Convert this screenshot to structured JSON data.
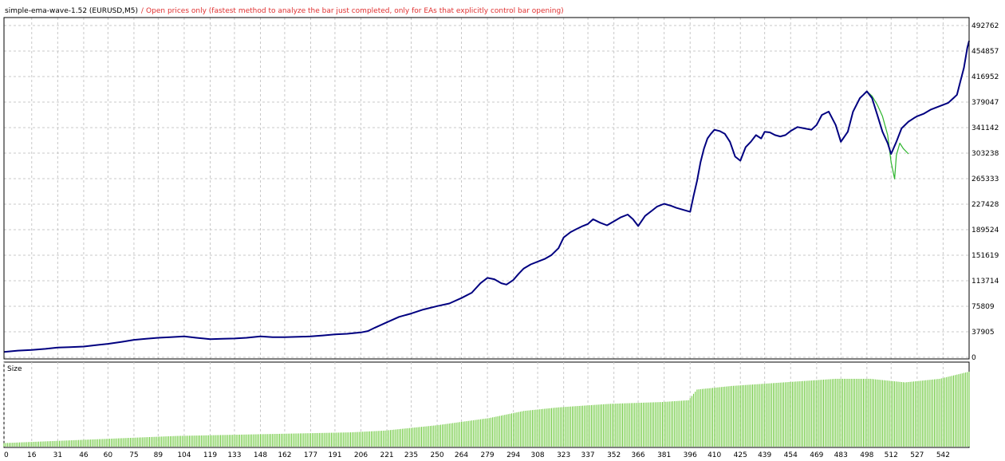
{
  "header": {
    "title": "simple-ema-wave-1.52 (EURUSD,M5)",
    "separator": " / ",
    "mode_note": "Open prices only (fastest method to analyze the bar just completed, only for EAs that explicitly control bar opening)"
  },
  "size_panel": {
    "label": "Size"
  },
  "colors": {
    "balance": "#000080",
    "equity": "#2db52d",
    "size_bars": "#66c633",
    "grid": "#c8c8c8",
    "warning_text": "#e03030"
  },
  "chart_data": {
    "type": "line",
    "title": "",
    "xlabel": "",
    "ylabel": "",
    "xlim": [
      0,
      557
    ],
    "ylim": [
      0,
      492762
    ],
    "grid": true,
    "y_ticks": [
      {
        "value": 0,
        "label": "0"
      },
      {
        "value": 37905,
        "label": "37905"
      },
      {
        "value": 75809,
        "label": "75809"
      },
      {
        "value": 113714,
        "label": "113714"
      },
      {
        "value": 151619,
        "label": "151619"
      },
      {
        "value": 189524,
        "label": "189524"
      },
      {
        "value": 227428,
        "label": "227428"
      },
      {
        "value": 265333,
        "label": "265333"
      },
      {
        "value": 303238,
        "label": "303238"
      },
      {
        "value": 341142,
        "label": "341142"
      },
      {
        "value": 379047,
        "label": "379047"
      },
      {
        "value": 416952,
        "label": "416952"
      },
      {
        "value": 454857,
        "label": "454857"
      },
      {
        "value": 492762,
        "label": "492762"
      }
    ],
    "x_ticks": [
      0,
      16,
      31,
      46,
      60,
      75,
      89,
      104,
      119,
      133,
      148,
      162,
      177,
      191,
      206,
      221,
      235,
      250,
      264,
      279,
      294,
      308,
      323,
      337,
      352,
      366,
      381,
      396,
      410,
      425,
      439,
      454,
      469,
      483,
      498,
      512,
      527,
      542
    ],
    "series": [
      {
        "role": "balance",
        "x": [
          0,
          8,
          16,
          24,
          31,
          38,
          46,
          53,
          60,
          68,
          75,
          82,
          89,
          96,
          104,
          111,
          119,
          126,
          133,
          140,
          148,
          155,
          162,
          170,
          177,
          184,
          191,
          198,
          206,
          210,
          214,
          221,
          228,
          235,
          242,
          250,
          257,
          264,
          270,
          275,
          279,
          283,
          287,
          290,
          294,
          297,
          300,
          304,
          308,
          312,
          316,
          320,
          323,
          327,
          330,
          334,
          337,
          340,
          344,
          348,
          352,
          356,
          360,
          363,
          366,
          370,
          374,
          377,
          381,
          385,
          388,
          392,
          396,
          398,
          400,
          402,
          404,
          406,
          408,
          410,
          413,
          416,
          419,
          422,
          425,
          428,
          431,
          434,
          437,
          439,
          442,
          445,
          448,
          451,
          454,
          458,
          462,
          466,
          469,
          472,
          476,
          480,
          483,
          487,
          490,
          494,
          496,
          498,
          501,
          504,
          507,
          510,
          512,
          515,
          518,
          522,
          525,
          527,
          531,
          535,
          539,
          542,
          545,
          548,
          550,
          552,
          554,
          556,
          557
        ],
        "values": [
          8000,
          10000,
          11000,
          12500,
          14500,
          15000,
          16000,
          18000,
          20000,
          23000,
          26000,
          27500,
          29000,
          30000,
          31000,
          29000,
          27000,
          27500,
          28000,
          29000,
          31000,
          30000,
          30000,
          30500,
          31000,
          32500,
          34000,
          35000,
          37000,
          39000,
          44000,
          52000,
          60000,
          65000,
          71000,
          76000,
          80000,
          88000,
          96000,
          110000,
          118000,
          116000,
          110000,
          108000,
          115000,
          124000,
          132000,
          138000,
          142000,
          146000,
          152000,
          162000,
          178000,
          186000,
          190000,
          195000,
          198000,
          205000,
          200000,
          196000,
          202000,
          208000,
          212000,
          205000,
          195000,
          210000,
          218000,
          224000,
          228000,
          225000,
          222000,
          219000,
          216000,
          240000,
          262000,
          290000,
          310000,
          325000,
          332000,
          338000,
          336000,
          332000,
          320000,
          298000,
          292000,
          312000,
          320000,
          330000,
          325000,
          335000,
          334000,
          330000,
          328000,
          330000,
          336000,
          342000,
          340000,
          338000,
          345000,
          360000,
          365000,
          345000,
          320000,
          335000,
          365000,
          385000,
          390000,
          395000,
          385000,
          360000,
          335000,
          318000,
          302000,
          320000,
          340000,
          350000,
          355000,
          358000,
          362000,
          368000,
          372000,
          375000,
          378000,
          385000,
          390000,
          410000,
          430000,
          460000,
          470000
        ]
      },
      {
        "role": "equity",
        "x": [
          498,
          501,
          504,
          507,
          510,
          512,
          514,
          515,
          517,
          519,
          522
        ],
        "values": [
          395000,
          388000,
          375000,
          358000,
          330000,
          290000,
          265000,
          300000,
          318000,
          310000,
          302000
        ]
      }
    ],
    "size_panel": {
      "x": [
        0,
        50,
        100,
        150,
        200,
        220,
        250,
        280,
        300,
        320,
        350,
        380,
        395,
        400,
        420,
        450,
        480,
        500,
        520,
        540,
        557
      ],
      "values": [
        1,
        2,
        3,
        3.5,
        4,
        4.5,
        6,
        8,
        10,
        11,
        12,
        12.5,
        13,
        16,
        17,
        18,
        19,
        19,
        18,
        19,
        21
      ]
    }
  }
}
